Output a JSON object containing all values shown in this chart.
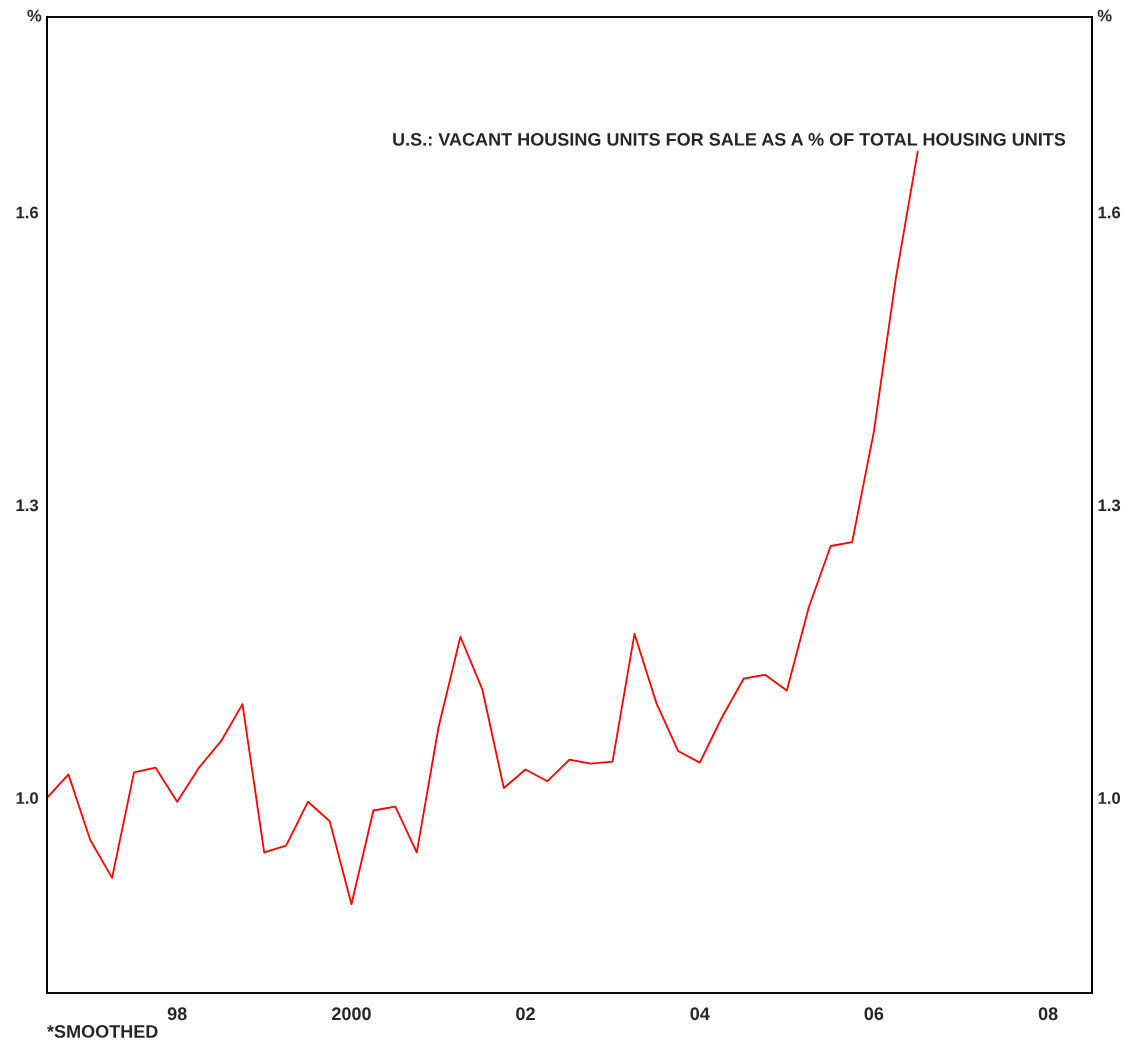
{
  "chart_data": {
    "type": "line",
    "title": "U.S.: VACANT HOUSING UNITS FOR SALE AS A % OF TOTAL HOUSING UNITS",
    "ylabel": "%",
    "y2label": "%",
    "x": [
      "1997-01",
      "1997-04",
      "1997-07",
      "1997-10",
      "1998-01",
      "1998-04",
      "1998-07",
      "1998-10",
      "1999-01",
      "1999-04",
      "1999-07",
      "1999-10",
      "2000-01",
      "2000-04",
      "2000-07",
      "2000-10",
      "2001-01",
      "2001-04",
      "2001-07",
      "2001-10",
      "2002-01",
      "2002-04",
      "2002-07",
      "2002-10",
      "2003-01",
      "2003-04",
      "2003-07",
      "2003-10",
      "2004-01",
      "2004-04",
      "2004-07",
      "2004-10",
      "2005-01",
      "2005-04",
      "2005-07",
      "2005-10",
      "2006-01",
      "2006-04",
      "2006-07",
      "2006-10",
      "2007-01"
    ],
    "series": [
      {
        "color": "#ff0000",
        "values": [
          1.0,
          1.024,
          0.957,
          0.918,
          1.026,
          1.031,
          0.996,
          1.031,
          1.058,
          1.096,
          0.944,
          0.951,
          0.996,
          0.976,
          0.891,
          0.987,
          0.991,
          0.944,
          1.072,
          1.165,
          1.111,
          1.01,
          1.029,
          1.017,
          1.039,
          1.035,
          1.037,
          1.168,
          1.097,
          1.048,
          1.036,
          1.082,
          1.122,
          1.126,
          1.11,
          1.195,
          1.258,
          1.262,
          1.375,
          1.532,
          1.662
        ]
      }
    ],
    "xlim": [
      "1997-01",
      "2009-01"
    ],
    "xticks": [
      {
        "value": "1998-07",
        "label": "98"
      },
      {
        "value": "2000-07",
        "label": "2000"
      },
      {
        "value": "2002-07",
        "label": "02"
      },
      {
        "value": "2004-07",
        "label": "04"
      },
      {
        "value": "2006-07",
        "label": "06"
      },
      {
        "value": "2008-07",
        "label": "08"
      }
    ],
    "ylim": [
      0.8,
      1.8
    ],
    "yticks": [
      {
        "value": 1.0,
        "label": "1.0"
      },
      1.3,
      1.6
    ],
    "y2lim": [
      0.8,
      1.8
    ],
    "y2ticks": [
      {
        "value": 1.0,
        "label": "1.0"
      },
      1.3,
      1.6
    ],
    "grid": false,
    "legend": false,
    "annotations": [
      "*SMOOTHED"
    ]
  }
}
